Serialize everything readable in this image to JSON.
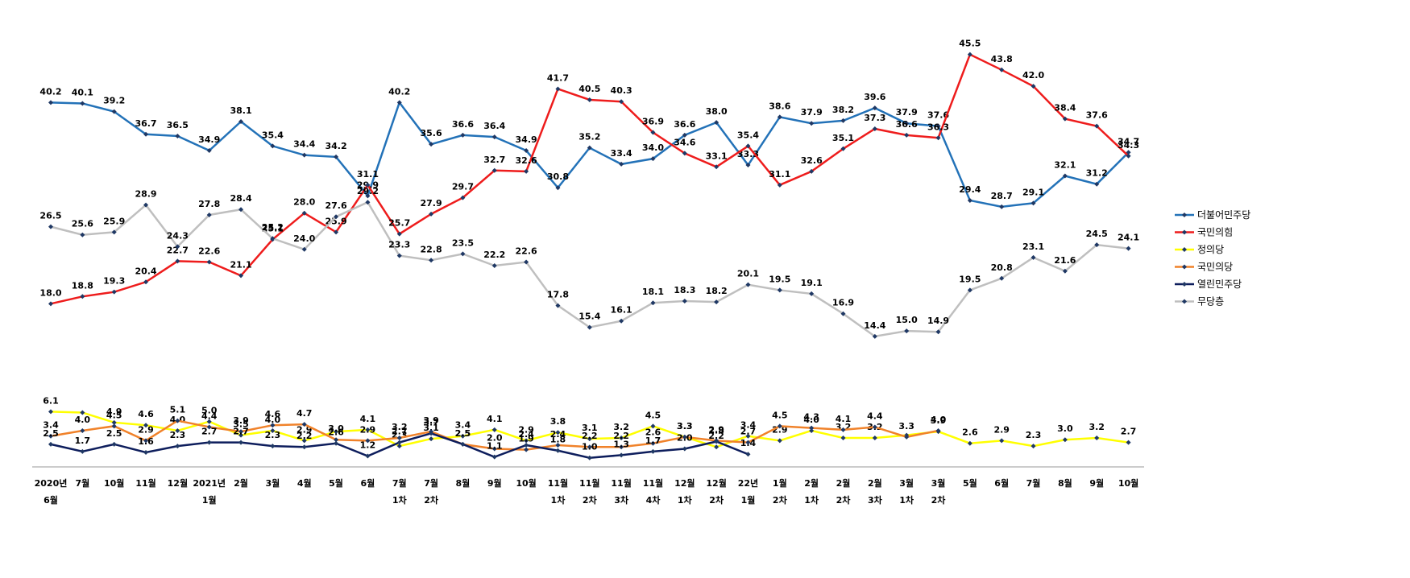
{
  "chart_data": {
    "type": "line",
    "categories": [
      [
        "2020년",
        "6월"
      ],
      [
        "7월"
      ],
      [
        "10월"
      ],
      [
        "11월"
      ],
      [
        "12월"
      ],
      [
        "2021년",
        "1월"
      ],
      [
        "2월"
      ],
      [
        "3월"
      ],
      [
        "4월"
      ],
      [
        "5월"
      ],
      [
        "6월"
      ],
      [
        "7월",
        "1차"
      ],
      [
        "7월",
        "2차"
      ],
      [
        "8월"
      ],
      [
        "9월"
      ],
      [
        "10월"
      ],
      [
        "11월",
        "1차"
      ],
      [
        "11월",
        "2차"
      ],
      [
        "11월",
        "3차"
      ],
      [
        "11월",
        "4차"
      ],
      [
        "12월",
        "1차"
      ],
      [
        "12월",
        "2차"
      ],
      [
        "22년",
        "1월"
      ],
      [
        "1월",
        "2차"
      ],
      [
        "2월",
        "1차"
      ],
      [
        "2월",
        "2차"
      ],
      [
        "2월",
        "3차"
      ],
      [
        "3월",
        "1차"
      ],
      [
        "3월",
        "2차"
      ],
      [
        "5월"
      ],
      [
        "6월"
      ],
      [
        "7월"
      ],
      [
        "8월"
      ],
      [
        "9월"
      ],
      [
        "10월"
      ]
    ],
    "ylim": [
      0,
      50
    ],
    "legend": "right",
    "marker_color": "#1f3864",
    "series": [
      {
        "name": "더불어민주당",
        "color": "#2372b8",
        "values": [
          40.2,
          40.1,
          39.2,
          36.7,
          36.5,
          34.9,
          38.1,
          35.4,
          34.4,
          34.2,
          29.9,
          40.2,
          35.6,
          36.6,
          36.4,
          34.9,
          30.8,
          35.2,
          33.4,
          34.0,
          36.6,
          38.0,
          33.3,
          38.6,
          37.9,
          38.2,
          39.6,
          37.9,
          37.6,
          29.4,
          28.7,
          29.1,
          32.1,
          31.2,
          34.7
        ],
        "value_labels": [
          "40.2",
          "40.1",
          "39.2",
          "36.7",
          "36.5",
          "34.9",
          "38.1",
          "35.4",
          "34.4",
          "34.2",
          "29.9",
          "40.2",
          "35.6",
          "36.6",
          "36.4",
          "34.9",
          "30.8",
          "35.2",
          "33.4",
          "34.0",
          "36.6",
          "38.0",
          "33.3",
          "38.6",
          "37.9",
          "38.2",
          "39.6",
          "37.9",
          "37.6",
          "29.4",
          "28.7",
          "29.1",
          "32.1",
          "31.2",
          "34.7"
        ]
      },
      {
        "name": "국민의힘",
        "color": "#ee1c1c",
        "values": [
          18.0,
          18.8,
          19.3,
          20.4,
          22.7,
          22.6,
          21.1,
          25.1,
          28.0,
          25.9,
          31.1,
          25.7,
          27.9,
          29.7,
          32.7,
          32.6,
          41.7,
          40.5,
          40.3,
          36.9,
          34.6,
          33.1,
          35.4,
          31.1,
          32.6,
          35.1,
          37.3,
          36.6,
          36.3,
          45.5,
          43.8,
          42.0,
          38.4,
          37.6,
          34.3
        ],
        "value_labels": [
          "18.0",
          "18.8",
          "19.3",
          "20.4",
          "22.7",
          "22.6",
          "21.1",
          "25.1",
          "28.0",
          "25.9",
          "31.1",
          "25.7",
          "27.9",
          "29.7",
          "32.7",
          "32.6",
          "41.7",
          "40.5",
          "40.3",
          "36.9",
          "34.6",
          "33.1",
          "35.4",
          "31.1",
          "32.6",
          "35.1",
          "37.3",
          "36.6",
          "36.3",
          "45.5",
          "43.8",
          "42.0",
          "38.4",
          "37.6",
          "34.3"
        ]
      },
      {
        "name": "정의당",
        "color": "#ffff00",
        "values": [
          6.1,
          6.0,
          4.9,
          4.6,
          4.0,
          5.0,
          3.5,
          4.0,
          2.9,
          3.9,
          4.1,
          2.3,
          3.1,
          3.4,
          4.1,
          2.9,
          3.8,
          3.1,
          3.2,
          4.5,
          3.3,
          2.2,
          3.4,
          2.9,
          4.0,
          3.2,
          3.2,
          3.5,
          3.9,
          2.6,
          2.9,
          2.3,
          3.0,
          3.2,
          2.7
        ],
        "value_labels": [
          "6.1",
          null,
          "4.9",
          "4.6",
          "4.0",
          "5.0",
          "3.5",
          "4.0",
          "2.9",
          null,
          "4.1",
          "2.3",
          "3.1",
          "3.4",
          "4.1",
          "2.9",
          "3.8",
          "3.1",
          "3.2",
          "4.5",
          "3.3",
          "2.2",
          "3.4",
          "2.9",
          "4.0",
          "3.2",
          "3.2",
          null,
          "3.9",
          "2.6",
          "2.9",
          "2.3",
          "3.0",
          "3.2",
          "2.7"
        ]
      },
      {
        "name": "국민의당",
        "color": "#f0822a",
        "values": [
          3.4,
          4.0,
          4.5,
          2.9,
          5.1,
          4.4,
          3.9,
          4.6,
          4.7,
          3.0,
          2.9,
          3.2,
          3.9,
          2.5,
          2.0,
          1.9,
          2.4,
          2.2,
          2.2,
          2.6,
          3.3,
          2.9,
          2.7,
          4.5,
          4.3,
          4.1,
          4.4,
          3.3,
          4.0,
          null,
          null,
          null,
          null,
          null,
          null
        ],
        "value_labels": [
          "3.4",
          "4.0",
          "4.5",
          "2.9",
          "5.1",
          "4.4",
          "3.9",
          "4.6",
          "4.7",
          "3.0",
          "2.9",
          "3.2",
          "3.9",
          "2.5",
          "2.0",
          "1.9",
          "2.4",
          "2.2",
          "2.2",
          "2.6",
          "3.3",
          "2.9",
          "2.7",
          "4.5",
          "4.3",
          "4.1",
          "4.4",
          "3.3",
          "4.0",
          null,
          null,
          null,
          null,
          null,
          null
        ]
      },
      {
        "name": "열린민주당",
        "color": "#0d1d5c",
        "values": [
          2.5,
          1.7,
          2.5,
          1.6,
          2.3,
          2.7,
          2.7,
          2.3,
          2.2,
          2.6,
          1.2,
          2.7,
          3.7,
          2.5,
          1.1,
          2.4,
          1.8,
          1.0,
          1.3,
          1.7,
          2.0,
          2.8,
          1.4,
          null,
          null,
          null,
          null,
          null,
          null,
          null,
          null,
          null,
          null,
          null,
          null
        ],
        "value_labels": [
          "2.5",
          "1.7",
          "2.5",
          "1.6",
          "2.3",
          "2.7",
          "2.7",
          "2.3",
          "2.2",
          "2.6",
          "1.2",
          "2.7",
          "3.7",
          "2.5",
          "1.1",
          "2.4",
          "1.8",
          "1.0",
          "1.3",
          "1.7",
          "2.0",
          "2.8",
          "1.4",
          null,
          null,
          null,
          null,
          null,
          null,
          null,
          null,
          null,
          null,
          null,
          null
        ]
      },
      {
        "name": "무당층",
        "color": "#bfbfbf",
        "values": [
          26.5,
          25.6,
          25.9,
          28.9,
          24.3,
          27.8,
          28.4,
          25.2,
          24.0,
          27.6,
          29.2,
          23.3,
          22.8,
          23.5,
          22.2,
          22.6,
          17.8,
          15.4,
          16.1,
          18.1,
          18.3,
          18.2,
          20.1,
          19.5,
          19.1,
          16.9,
          14.4,
          15.0,
          14.9,
          19.5,
          20.8,
          23.1,
          21.6,
          24.5,
          24.1
        ],
        "value_labels": [
          "26.5",
          "25.6",
          "25.9",
          "28.9",
          "24.3",
          "27.8",
          "28.4",
          "25.2",
          "24.0",
          "27.6",
          "29.2",
          "23.3",
          "22.8",
          "23.5",
          "22.2",
          "22.6",
          "17.8",
          "15.4",
          "16.1",
          "18.1",
          "18.3",
          "18.2",
          "20.1",
          "19.5",
          "19.1",
          "16.9",
          "14.4",
          "15.0",
          "14.9",
          "19.5",
          "20.8",
          "23.1",
          "21.6",
          "24.5",
          "24.1"
        ]
      }
    ]
  }
}
